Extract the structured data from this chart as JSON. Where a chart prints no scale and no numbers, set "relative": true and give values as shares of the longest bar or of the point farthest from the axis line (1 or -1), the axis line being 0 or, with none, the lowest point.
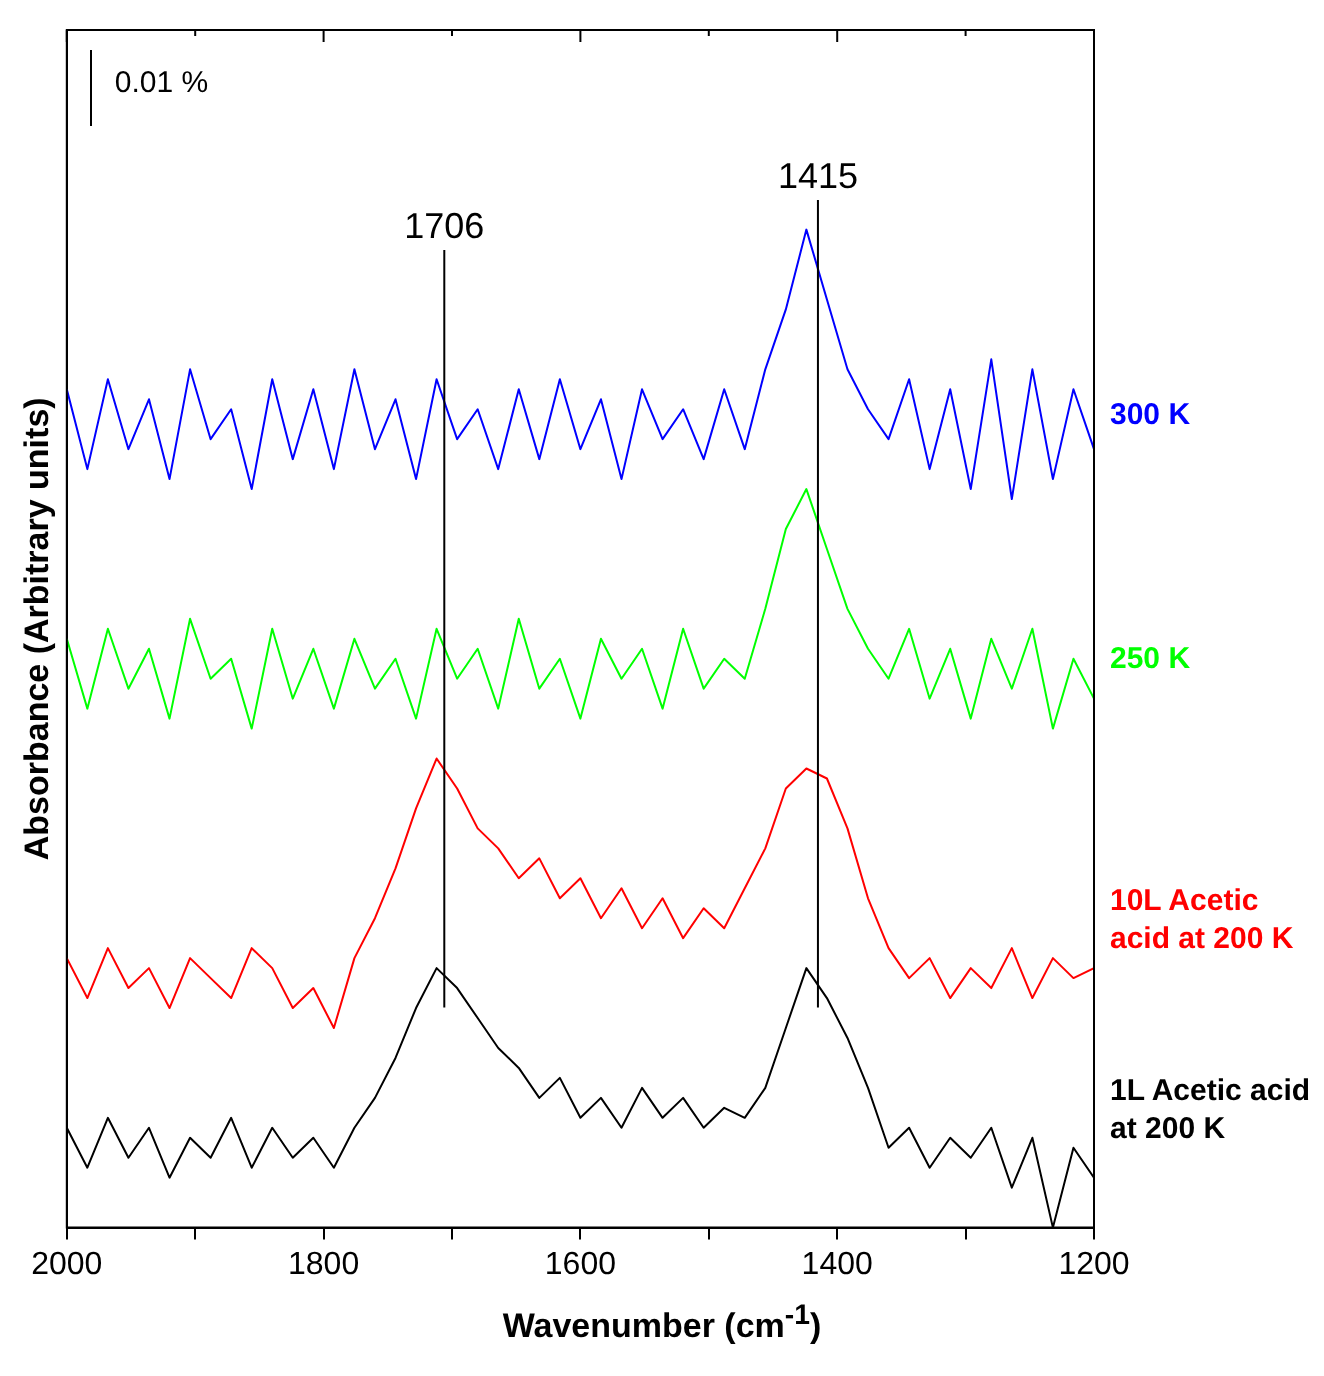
{
  "chart_data": {
    "type": "line",
    "relative": true,
    "xlabel": "Wavenumber (cm$^{-1}$)",
    "ylabel": "Absorbance (Arbitrary units)",
    "annotations": [
      "0.01 %"
    ],
    "x": [
      2000,
      1984,
      1968,
      1952,
      1936,
      1920,
      1904,
      1888,
      1872,
      1856,
      1840,
      1824,
      1808,
      1792,
      1776,
      1760,
      1744,
      1728,
      1712,
      1696,
      1680,
      1664,
      1648,
      1632,
      1616,
      1600,
      1584,
      1568,
      1552,
      1536,
      1520,
      1504,
      1488,
      1472,
      1456,
      1440,
      1424,
      1408,
      1392,
      1376,
      1360,
      1344,
      1328,
      1312,
      1296,
      1280,
      1264,
      1248,
      1232,
      1216,
      1200
    ],
    "xlim": [
      2000,
      1200
    ],
    "xticks": [
      2000,
      {
        "value": 1900,
        "label": null
      },
      1800,
      {
        "value": 1700,
        "label": null
      },
      1600,
      {
        "value": 1500,
        "label": null
      },
      1400,
      {
        "value": 1300,
        "label": null
      },
      1200
    ],
    "tick_labels": "x",
    "grid": false,
    "legend": false,
    "marker": "none",
    "line_style": "solid",
    "ref_lines": [
      {
        "axis": "x",
        "value": 1706,
        "label": "1706"
      },
      {
        "axis": "x",
        "value": 1415,
        "label": "1415"
      }
    ],
    "series": [
      {
        "name": "300 K",
        "color": "#0000ff",
        "values": [
          0.84,
          0.76,
          0.85,
          0.78,
          0.83,
          0.75,
          0.86,
          0.79,
          0.82,
          0.74,
          0.85,
          0.77,
          0.84,
          0.76,
          0.86,
          0.78,
          0.83,
          0.75,
          0.85,
          0.79,
          0.82,
          0.76,
          0.84,
          0.77,
          0.85,
          0.78,
          0.83,
          0.75,
          0.84,
          0.79,
          0.82,
          0.77,
          0.84,
          0.78,
          0.86,
          0.92,
          1.0,
          0.93,
          0.86,
          0.82,
          0.79,
          0.85,
          0.76,
          0.84,
          0.74,
          0.87,
          0.73,
          0.86,
          0.75,
          0.84,
          0.78
        ]
      },
      {
        "name": "250 K",
        "color": "#00ff00",
        "values": [
          0.59,
          0.52,
          0.6,
          0.54,
          0.58,
          0.51,
          0.61,
          0.55,
          0.57,
          0.5,
          0.6,
          0.53,
          0.58,
          0.52,
          0.59,
          0.54,
          0.57,
          0.51,
          0.6,
          0.55,
          0.58,
          0.52,
          0.61,
          0.54,
          0.57,
          0.51,
          0.59,
          0.55,
          0.58,
          0.52,
          0.6,
          0.54,
          0.57,
          0.55,
          0.62,
          0.7,
          0.74,
          0.68,
          0.62,
          0.58,
          0.55,
          0.6,
          0.53,
          0.58,
          0.51,
          0.59,
          0.54,
          0.6,
          0.5,
          0.57,
          0.53
        ]
      },
      {
        "name": "10L Acetic acid at 200 K",
        "color": "#ff0000",
        "values": [
          0.27,
          0.23,
          0.28,
          0.24,
          0.26,
          0.22,
          0.27,
          0.25,
          0.23,
          0.28,
          0.26,
          0.22,
          0.24,
          0.2,
          0.27,
          0.31,
          0.36,
          0.42,
          0.47,
          0.44,
          0.4,
          0.38,
          0.35,
          0.37,
          0.33,
          0.35,
          0.31,
          0.34,
          0.3,
          0.33,
          0.29,
          0.32,
          0.3,
          0.34,
          0.38,
          0.44,
          0.46,
          0.45,
          0.4,
          0.33,
          0.28,
          0.25,
          0.27,
          0.23,
          0.26,
          0.24,
          0.28,
          0.23,
          0.27,
          0.25,
          0.26
        ]
      },
      {
        "name": "1L Acetic acid at 200 K",
        "color": "#000000",
        "values": [
          0.1,
          0.06,
          0.11,
          0.07,
          0.1,
          0.05,
          0.09,
          0.07,
          0.11,
          0.06,
          0.1,
          0.07,
          0.09,
          0.06,
          0.1,
          0.13,
          0.17,
          0.22,
          0.26,
          0.24,
          0.21,
          0.18,
          0.16,
          0.13,
          0.15,
          0.11,
          0.13,
          0.1,
          0.14,
          0.11,
          0.13,
          0.1,
          0.12,
          0.11,
          0.14,
          0.2,
          0.26,
          0.23,
          0.19,
          0.14,
          0.08,
          0.1,
          0.06,
          0.09,
          0.07,
          0.1,
          0.04,
          0.09,
          0.0,
          0.08,
          0.05
        ]
      }
    ]
  }
}
